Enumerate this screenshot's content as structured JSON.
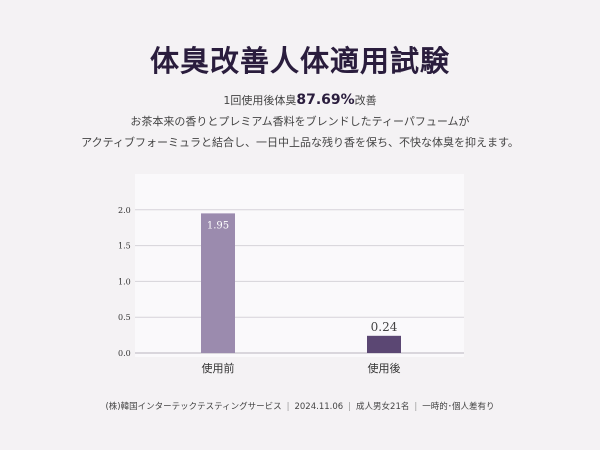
{
  "title": "体臭改善人体適用試験",
  "headline": {
    "prefix": "1回使用後体臭",
    "percent": "87.69%",
    "suffix": "改善"
  },
  "description": [
    "お茶本来の香りとプレミアム香料をブレンドしたティーパフュームが",
    "アクティブフォーミュラと結合し、一日中上品な残り香を保ち、不快な体臭を抑えます。"
  ],
  "chart_data": {
    "type": "bar",
    "categories": [
      "使用前",
      "使用後"
    ],
    "values": [
      1.95,
      0.24
    ],
    "value_labels": [
      "1.95",
      "0.24"
    ],
    "yticks": [
      "0.0",
      "0.5",
      "1.0",
      "1.5",
      "2.0"
    ],
    "ylim": [
      0,
      2.5
    ],
    "grid": true,
    "colors": [
      "#9b8bae",
      "#5b4773"
    ]
  },
  "footer": [
    "(株)韓国インターテックテスティングサービス",
    "2024.11.06",
    "成人男女21名",
    "一時的･個人差有り"
  ]
}
